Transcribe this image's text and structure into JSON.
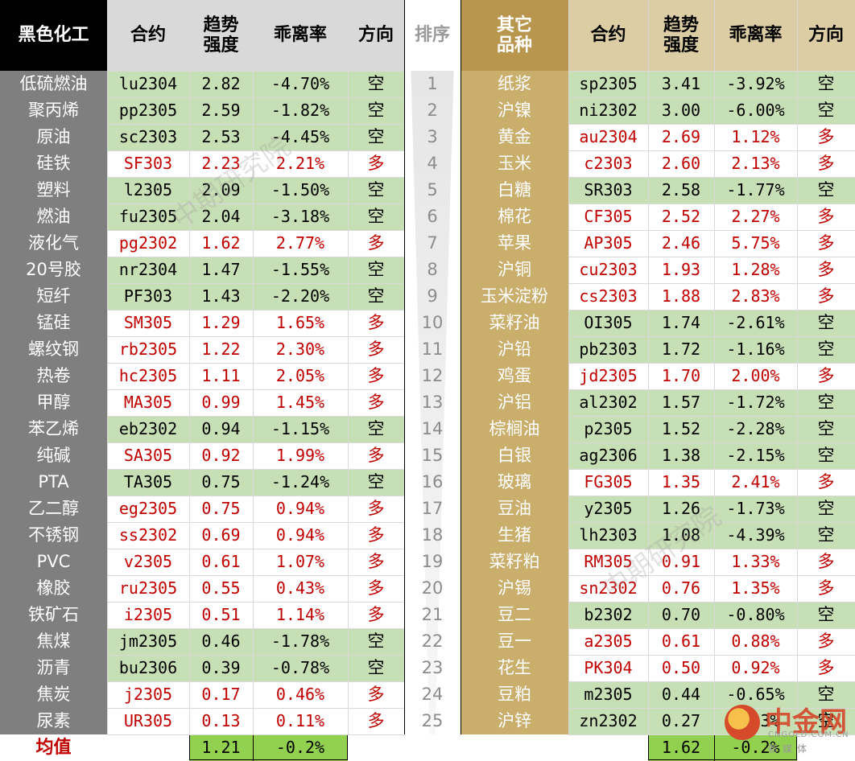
{
  "chart_data": {
    "type": "table",
    "left_headers": {
      "group": "黑色化工",
      "contract": "合约",
      "strength": "趋势\n强度",
      "deviation": "乖离率",
      "direction": "方向"
    },
    "rank_header": "排序",
    "right_headers": {
      "group": "其它\n品种",
      "contract": "合约",
      "strength": "趋势\n强度",
      "deviation": "乖离率",
      "direction": "方向"
    },
    "left_rows": [
      {
        "name": "低硫燃油",
        "contract": "lu2304",
        "strength": "2.82",
        "deviation": "-4.70%",
        "direction": "空"
      },
      {
        "name": "聚丙烯",
        "contract": "pp2305",
        "strength": "2.59",
        "deviation": "-1.82%",
        "direction": "空"
      },
      {
        "name": "原油",
        "contract": "sc2303",
        "strength": "2.53",
        "deviation": "-4.45%",
        "direction": "空"
      },
      {
        "name": "硅铁",
        "contract": "SF303",
        "strength": "2.23",
        "deviation": "2.21%",
        "direction": "多"
      },
      {
        "name": "塑料",
        "contract": "l2305",
        "strength": "2.09",
        "deviation": "-1.50%",
        "direction": "空"
      },
      {
        "name": "燃油",
        "contract": "fu2305",
        "strength": "2.04",
        "deviation": "-3.18%",
        "direction": "空"
      },
      {
        "name": "液化气",
        "contract": "pg2302",
        "strength": "1.62",
        "deviation": "2.77%",
        "direction": "多"
      },
      {
        "name": "20号胶",
        "contract": "nr2304",
        "strength": "1.47",
        "deviation": "-1.55%",
        "direction": "空"
      },
      {
        "name": "短纤",
        "contract": "PF303",
        "strength": "1.43",
        "deviation": "-2.20%",
        "direction": "空"
      },
      {
        "name": "锰硅",
        "contract": "SM305",
        "strength": "1.29",
        "deviation": "1.65%",
        "direction": "多"
      },
      {
        "name": "螺纹钢",
        "contract": "rb2305",
        "strength": "1.22",
        "deviation": "2.30%",
        "direction": "多"
      },
      {
        "name": "热卷",
        "contract": "hc2305",
        "strength": "1.11",
        "deviation": "2.05%",
        "direction": "多"
      },
      {
        "name": "甲醇",
        "contract": "MA305",
        "strength": "0.99",
        "deviation": "1.45%",
        "direction": "多"
      },
      {
        "name": "苯乙烯",
        "contract": "eb2302",
        "strength": "0.94",
        "deviation": "-1.15%",
        "direction": "空"
      },
      {
        "name": "纯碱",
        "contract": "SA305",
        "strength": "0.92",
        "deviation": "1.99%",
        "direction": "多"
      },
      {
        "name": "PTA",
        "contract": "TA305",
        "strength": "0.75",
        "deviation": "-1.24%",
        "direction": "空"
      },
      {
        "name": "乙二醇",
        "contract": "eg2305",
        "strength": "0.75",
        "deviation": "0.94%",
        "direction": "多"
      },
      {
        "name": "不锈钢",
        "contract": "ss2302",
        "strength": "0.69",
        "deviation": "0.94%",
        "direction": "多"
      },
      {
        "name": "PVC",
        "contract": "v2305",
        "strength": "0.61",
        "deviation": "1.07%",
        "direction": "多"
      },
      {
        "name": "橡胶",
        "contract": "ru2305",
        "strength": "0.55",
        "deviation": "0.43%",
        "direction": "多"
      },
      {
        "name": "铁矿石",
        "contract": "i2305",
        "strength": "0.51",
        "deviation": "1.14%",
        "direction": "多"
      },
      {
        "name": "焦煤",
        "contract": "jm2305",
        "strength": "0.46",
        "deviation": "-1.78%",
        "direction": "空"
      },
      {
        "name": "沥青",
        "contract": "bu2306",
        "strength": "0.39",
        "deviation": "-0.78%",
        "direction": "空"
      },
      {
        "name": "焦炭",
        "contract": "j2305",
        "strength": "0.17",
        "deviation": "0.46%",
        "direction": "多"
      },
      {
        "name": "尿素",
        "contract": "UR305",
        "strength": "0.13",
        "deviation": "0.11%",
        "direction": "多"
      }
    ],
    "right_rows": [
      {
        "name": "纸浆",
        "contract": "sp2305",
        "strength": "3.41",
        "deviation": "-3.92%",
        "direction": "空"
      },
      {
        "name": "沪镍",
        "contract": "ni2302",
        "strength": "3.00",
        "deviation": "-6.00%",
        "direction": "空"
      },
      {
        "name": "黄金",
        "contract": "au2304",
        "strength": "2.69",
        "deviation": "1.12%",
        "direction": "多"
      },
      {
        "name": "玉米",
        "contract": "c2303",
        "strength": "2.60",
        "deviation": "2.13%",
        "direction": "多"
      },
      {
        "name": "白糖",
        "contract": "SR303",
        "strength": "2.58",
        "deviation": "-1.77%",
        "direction": "空"
      },
      {
        "name": "棉花",
        "contract": "CF305",
        "strength": "2.52",
        "deviation": "2.27%",
        "direction": "多"
      },
      {
        "name": "苹果",
        "contract": "AP305",
        "strength": "2.46",
        "deviation": "5.75%",
        "direction": "多"
      },
      {
        "name": "沪铜",
        "contract": "cu2303",
        "strength": "1.93",
        "deviation": "1.28%",
        "direction": "多"
      },
      {
        "name": "玉米淀粉",
        "contract": "cs2303",
        "strength": "1.88",
        "deviation": "2.83%",
        "direction": "多"
      },
      {
        "name": "菜籽油",
        "contract": "OI305",
        "strength": "1.74",
        "deviation": "-2.61%",
        "direction": "空"
      },
      {
        "name": "沪铅",
        "contract": "pb2303",
        "strength": "1.72",
        "deviation": "-1.16%",
        "direction": "空"
      },
      {
        "name": "鸡蛋",
        "contract": "jd2305",
        "strength": "1.70",
        "deviation": "2.00%",
        "direction": "多"
      },
      {
        "name": "沪铝",
        "contract": "al2302",
        "strength": "1.57",
        "deviation": "-1.72%",
        "direction": "空"
      },
      {
        "name": "棕榈油",
        "contract": "p2305",
        "strength": "1.52",
        "deviation": "-2.28%",
        "direction": "空"
      },
      {
        "name": "白银",
        "contract": "ag2306",
        "strength": "1.38",
        "deviation": "-2.15%",
        "direction": "空"
      },
      {
        "name": "玻璃",
        "contract": "FG305",
        "strength": "1.35",
        "deviation": "2.41%",
        "direction": "多"
      },
      {
        "name": "豆油",
        "contract": "y2305",
        "strength": "1.26",
        "deviation": "-1.73%",
        "direction": "空"
      },
      {
        "name": "生猪",
        "contract": "lh2303",
        "strength": "1.08",
        "deviation": "-4.39%",
        "direction": "空"
      },
      {
        "name": "菜籽粕",
        "contract": "RM305",
        "strength": "0.91",
        "deviation": "1.33%",
        "direction": "多"
      },
      {
        "name": "沪锡",
        "contract": "sn2302",
        "strength": "0.76",
        "deviation": "1.35%",
        "direction": "多"
      },
      {
        "name": "豆二",
        "contract": "b2302",
        "strength": "0.70",
        "deviation": "-0.80%",
        "direction": "空"
      },
      {
        "name": "豆一",
        "contract": "a2305",
        "strength": "0.61",
        "deviation": "0.88%",
        "direction": "多"
      },
      {
        "name": "花生",
        "contract": "PK304",
        "strength": "0.50",
        "deviation": "0.92%",
        "direction": "多"
      },
      {
        "name": "豆粕",
        "contract": "m2305",
        "strength": "0.44",
        "deviation": "-0.65%",
        "direction": "空"
      },
      {
        "name": "沪锌",
        "contract": "zn2302",
        "strength": "0.27",
        "deviation": "-0.3%",
        "direction": "空"
      }
    ],
    "ranks": [
      "1",
      "2",
      "3",
      "4",
      "5",
      "6",
      "7",
      "8",
      "9",
      "10",
      "11",
      "12",
      "13",
      "14",
      "15",
      "16",
      "17",
      "18",
      "19",
      "20",
      "21",
      "22",
      "23",
      "24",
      "25"
    ],
    "left_mean": {
      "label": "均值",
      "strength": "1.21",
      "deviation": "-0.2%"
    },
    "right_mean": {
      "strength": "1.62",
      "deviation": "-0.2%"
    }
  },
  "watermark_text": "中期研究院",
  "logo": {
    "name": "中金网",
    "url": "CNGOLD.COM.CN",
    "sub": "新媒体"
  },
  "colors": {
    "left_header_dark": "#000000",
    "left_name_column": "#7f7f7f",
    "header_gray": "#d9d9d9",
    "right_header_gold": "#b8964e",
    "right_name_column": "#c9ae6c",
    "right_header_light": "#dccda4",
    "short_fill": "#c6dfb4",
    "mean_fill": "#92d050",
    "long_text": "#c00000",
    "mean_label": "#c00000"
  }
}
